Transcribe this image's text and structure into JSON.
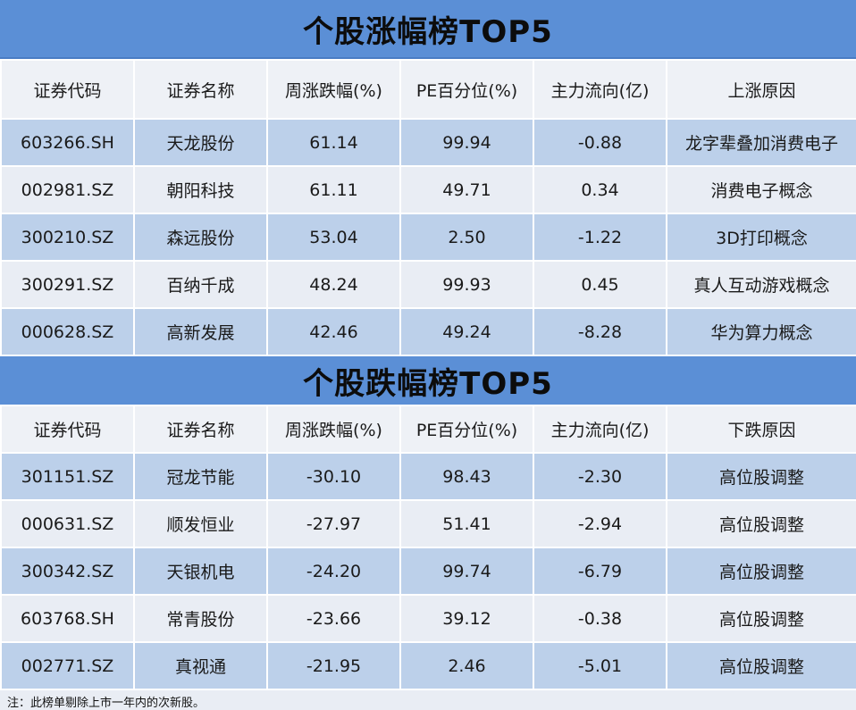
{
  "gainers": {
    "title": "个股涨幅榜TOP5",
    "headers": [
      "证券代码",
      "证券名称",
      "周涨跌幅(%)",
      "PE百分位(%)",
      "主力流向(亿)",
      "上涨原因"
    ],
    "rows": [
      {
        "code": "603266.SH",
        "name": "天龙股份",
        "change": "61.14",
        "pe": "99.94",
        "flow": "-0.88",
        "reason": "龙字辈叠加消费电子"
      },
      {
        "code": "002981.SZ",
        "name": "朝阳科技",
        "change": "61.11",
        "pe": "49.71",
        "flow": "0.34",
        "reason": "消费电子概念"
      },
      {
        "code": "300210.SZ",
        "name": "森远股份",
        "change": "53.04",
        "pe": "2.50",
        "flow": "-1.22",
        "reason": "3D打印概念"
      },
      {
        "code": "300291.SZ",
        "name": "百纳千成",
        "change": "48.24",
        "pe": "99.93",
        "flow": "0.45",
        "reason": "真人互动游戏概念"
      },
      {
        "code": "000628.SZ",
        "name": "高新发展",
        "change": "42.46",
        "pe": "49.24",
        "flow": "-8.28",
        "reason": "华为算力概念"
      }
    ]
  },
  "losers": {
    "title": "个股跌幅榜TOP5",
    "headers": [
      "证券代码",
      "证券名称",
      "周涨跌幅(%)",
      "PE百分位(%)",
      "主力流向(亿)",
      "下跌原因"
    ],
    "rows": [
      {
        "code": "301151.SZ",
        "name": "冠龙节能",
        "change": "-30.10",
        "pe": "98.43",
        "flow": "-2.30",
        "reason": "高位股调整"
      },
      {
        "code": "000631.SZ",
        "name": "顺发恒业",
        "change": "-27.97",
        "pe": "51.41",
        "flow": "-2.94",
        "reason": "高位股调整"
      },
      {
        "code": "300342.SZ",
        "name": "天银机电",
        "change": "-24.20",
        "pe": "99.74",
        "flow": "-6.79",
        "reason": "高位股调整"
      },
      {
        "code": "603768.SH",
        "name": "常青股份",
        "change": "-23.66",
        "pe": "39.12",
        "flow": "-0.38",
        "reason": "高位股调整"
      },
      {
        "code": "002771.SZ",
        "name": "真视通",
        "change": "-21.95",
        "pe": "2.46",
        "flow": "-5.01",
        "reason": "高位股调整"
      }
    ]
  },
  "footnote": "注：此榜单剔除上市一年内的次新股。",
  "colors": {
    "banner": "#5b8fd6",
    "row_blue": "#bcd0ea",
    "row_gray": "#e9edf4",
    "positive": "#e8262c",
    "negative": "#1aa34a"
  }
}
